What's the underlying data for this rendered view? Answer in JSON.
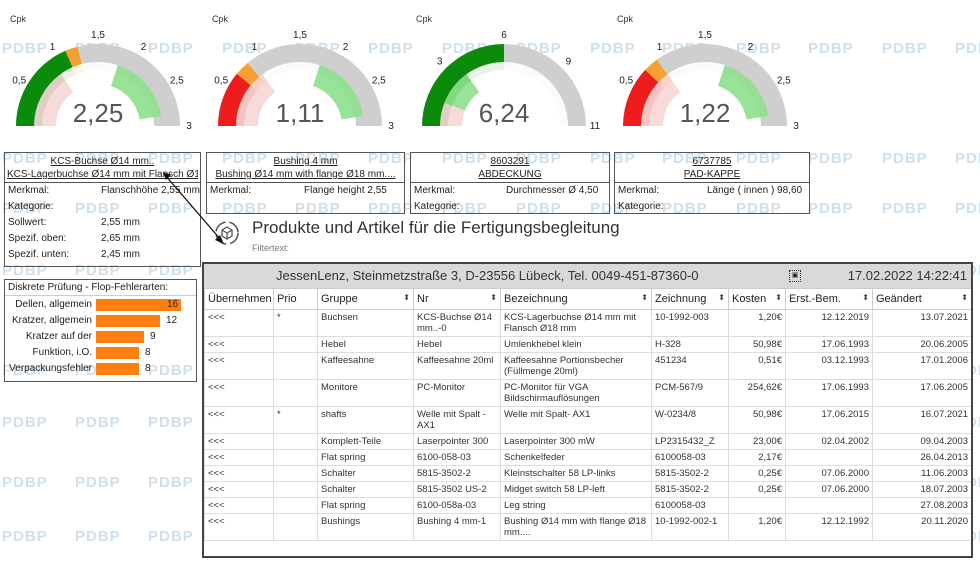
{
  "watermark": "PDBP",
  "gauges": [
    {
      "label": "Cpk",
      "value": "2,25",
      "ticks": [
        "0",
        "0,5",
        "1",
        "1,5",
        "2",
        "2,5",
        "3"
      ],
      "colors": {
        "outer": "#0b8a0b",
        "inner": "#8ee08e"
      }
    },
    {
      "label": "Cpk",
      "value": "1,11",
      "ticks": [
        "0",
        "0,5",
        "1",
        "1,5",
        "2",
        "2,5",
        "3"
      ],
      "colors": {
        "outer": "#ee1c1c",
        "inner": "#8ee08e"
      }
    },
    {
      "label": "Cpk",
      "value": "6,24",
      "ticks": [
        "0",
        "3",
        "6",
        "9",
        "11"
      ],
      "colors": {
        "outer": "#0b8a0b",
        "inner": "#8ee08e"
      }
    },
    {
      "label": "Cpk",
      "value": "1,22",
      "ticks": [
        "0",
        "0,5",
        "1",
        "1,5",
        "2",
        "2,5",
        "3"
      ],
      "colors": {
        "outer": "#ee1c1c",
        "inner": "#8ee08e"
      }
    }
  ],
  "cards": [
    {
      "title1": "KCS-Buchse Ø14 mm..",
      "title2": "KCS-Lagerbuchse Ø14 mm mit Flansch Ø18",
      "rows": [
        {
          "k": "Merkmal:",
          "v": "Flanschhöhe 2,55 mm"
        },
        {
          "k": "Kategorie:",
          "v": ""
        },
        {
          "k": "Sollwert:",
          "v": "2,55 mm"
        },
        {
          "k": "Spezif. oben:",
          "v": "2,65 mm"
        },
        {
          "k": "Spezif. unten:",
          "v": "2,45 mm"
        }
      ]
    },
    {
      "title1": "Bushing 4 mm",
      "title2": "Bushing Ø14 mm with flange Ø18 mm....",
      "rows": [
        {
          "k": "Merkmal:",
          "v": "Flange height 2,55"
        }
      ]
    },
    {
      "title1": "8603291",
      "title2": "ABDECKUNG",
      "rows": [
        {
          "k": "Merkmal:",
          "v": "Durchmesser Ø 4,50"
        },
        {
          "k": "Kategorie:",
          "v": ""
        }
      ]
    },
    {
      "title1": "6737785",
      "title2": "PAD-KAPPE",
      "rows": [
        {
          "k": "Merkmal:",
          "v": "Länge ( innen ) 98,60"
        },
        {
          "k": "Kategorie:",
          "v": ""
        }
      ]
    }
  ],
  "defects": {
    "title": "Diskrete Prüfung - Flop-Fehlerarten:",
    "items": [
      {
        "label": "Dellen, allgemein",
        "value": 16
      },
      {
        "label": "Kratzer, allgemein",
        "value": 12
      },
      {
        "label": "Kratzer auf der",
        "value": 9
      },
      {
        "label": "Funktion, i.O.",
        "value": 8
      },
      {
        "label": "Verpackungsfehler",
        "value": 8
      }
    ],
    "color": "#ff7f0e"
  },
  "dialog": {
    "title": "Produkte und Artikel für die Fertigungsbegleitung",
    "filter_label": "Filtertext:"
  },
  "panel": {
    "address": "JessenLenz, Steinmetzstraße 3, D-23556 Lübeck, Tel. 0049-451-87360-0",
    "datetime": "17.02.2022 14:22:41"
  },
  "table": {
    "columns": [
      "Übernehmen",
      "Prio",
      "Gruppe",
      "Nr",
      "Bezeichnung",
      "Zeichnung",
      "Kosten",
      "Erst.-Bem.",
      "Geändert"
    ],
    "rows": [
      [
        "<<<",
        "*",
        "Buchsen",
        "KCS-Buchse Ø14 mm..-0",
        "KCS-Lagerbuchse Ø14 mm mit Flansch Ø18 mm",
        "10-1992-003",
        "1,20€",
        "12.12.2019",
        "13.07.2021"
      ],
      [
        "<<<",
        "",
        "Hebel",
        "Hebel",
        "Umlenkhebel klein",
        "H-328",
        "50,98€",
        "17.06.1993",
        "20.06.2005"
      ],
      [
        "<<<",
        "",
        "Kaffeesahne",
        "Kaffeesahne 20ml",
        "Kaffeesahne Portionsbecher (Füllmenge 20ml)",
        "451234",
        "0,51€",
        "03.12.1993",
        "17.01.2006"
      ],
      [
        "<<<",
        "",
        "Monitore",
        "PC-Monitor",
        "PC-Monitor für VGA Bildschirmauflösungen",
        "PCM-567/9",
        "254,62€",
        "17.06.1993",
        "17.06.2005"
      ],
      [
        "<<<",
        "*",
        "shafts",
        "Welle mit Spalt - AX1",
        "Welle mit Spalt-  AX1",
        "W-0234/8",
        "50,98€",
        "17.06.2015",
        "16.07.2021"
      ],
      [
        "<<<",
        "",
        "Komplett-Teile",
        "Laserpointer 300",
        "Laserpointer 300 mW",
        "LP2315432_Z",
        "23,00€",
        "02.04.2002",
        "09.04.2003"
      ],
      [
        "<<<",
        "",
        "Flat spring",
        "6100-058-03",
        "Schenkelfeder",
        "6100058-03",
        "2,17€",
        "",
        "26.04.2013"
      ],
      [
        "<<<",
        "",
        "Schalter",
        "5815-3502-2",
        "Kleinstschalter 58 LP-links",
        "5815-3502-2",
        "0,25€",
        "07.06.2000",
        "11.06.2003"
      ],
      [
        "<<<",
        "",
        "Schalter",
        "5815-3502 US-2",
        "Midget switch 58 LP-left",
        "5815-3502-2",
        "0,25€",
        "07.06.2000",
        "18.07.2003"
      ],
      [
        "<<<",
        "",
        "Flat spring",
        "6100-058a-03",
        "Leg string",
        "6100058-03",
        "",
        "",
        "27.08.2003"
      ],
      [
        "<<<",
        "",
        "Bushings",
        "Bushing 4 mm-1",
        "Bushing Ø14 mm with flange Ø18 mm....",
        "10-1992-002-1",
        "1,20€",
        "12.12.1992",
        "20.11.2020"
      ]
    ]
  }
}
